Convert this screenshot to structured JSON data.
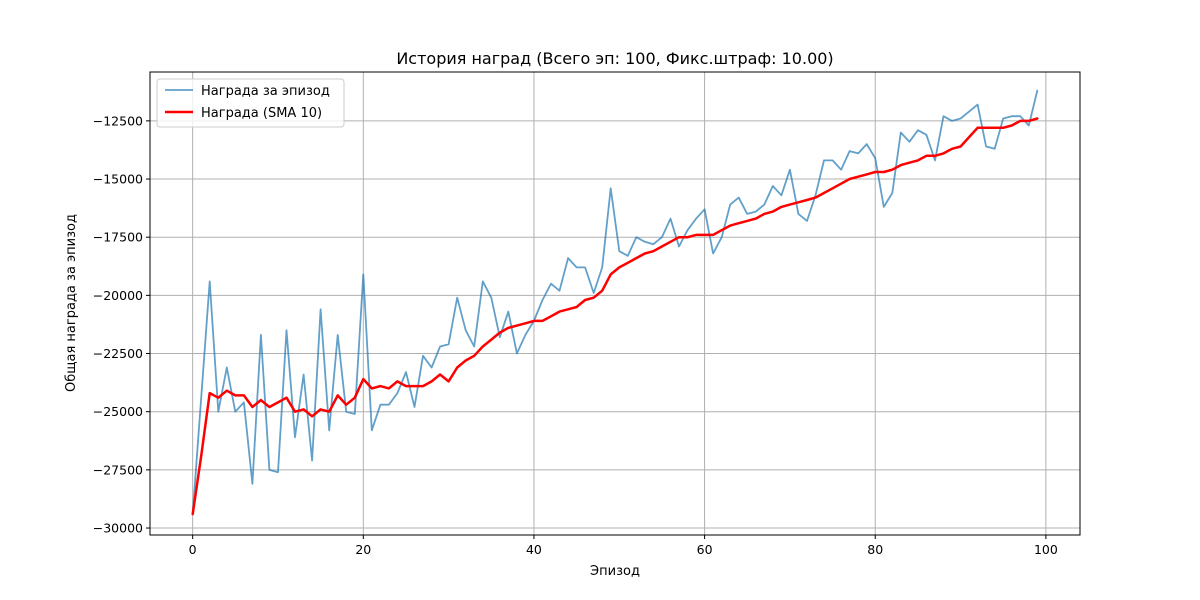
{
  "chart_data": {
    "type": "line",
    "title": "История наград (Всего эп: 100, Фикс.штраф: 10.00)",
    "xlabel": "Эпизод",
    "ylabel": "Общая награда за эпизод",
    "xlim": [
      -5,
      104
    ],
    "ylim": [
      -30300,
      -10400
    ],
    "xticks": [
      0,
      20,
      40,
      60,
      80,
      100
    ],
    "yticks": [
      -30000,
      -27500,
      -25000,
      -22500,
      -20000,
      -17500,
      -15000,
      -12500
    ],
    "grid": true,
    "legend_position": "top-left",
    "x": [
      0,
      1,
      2,
      3,
      4,
      5,
      6,
      7,
      8,
      9,
      10,
      11,
      12,
      13,
      14,
      15,
      16,
      17,
      18,
      19,
      20,
      21,
      22,
      23,
      24,
      25,
      26,
      27,
      28,
      29,
      30,
      31,
      32,
      33,
      34,
      35,
      36,
      37,
      38,
      39,
      40,
      41,
      42,
      43,
      44,
      45,
      46,
      47,
      48,
      49,
      50,
      51,
      52,
      53,
      54,
      55,
      56,
      57,
      58,
      59,
      60,
      61,
      62,
      63,
      64,
      65,
      66,
      67,
      68,
      69,
      70,
      71,
      72,
      73,
      74,
      75,
      76,
      77,
      78,
      79,
      80,
      81,
      82,
      83,
      84,
      85,
      86,
      87,
      88,
      89,
      90,
      91,
      92,
      93,
      94,
      95,
      96,
      97,
      98,
      99
    ],
    "series": [
      {
        "name": "Награда за эпизод",
        "color": "#1f77b4",
        "opacity": 0.7,
        "width": 1.8,
        "values": [
          -29400,
          -24400,
          -19400,
          -25000,
          -23100,
          -25000,
          -24600,
          -28100,
          -21700,
          -27500,
          -27600,
          -21500,
          -26100,
          -23400,
          -27100,
          -20600,
          -25800,
          -21700,
          -25000,
          -25100,
          -19100,
          -25800,
          -24700,
          -24700,
          -24200,
          -23300,
          -24800,
          -22600,
          -23100,
          -22200,
          -22100,
          -20100,
          -21500,
          -22200,
          -19400,
          -20100,
          -21800,
          -20700,
          -22500,
          -21700,
          -21100,
          -20200,
          -19500,
          -19800,
          -18400,
          -18800,
          -18800,
          -19900,
          -18800,
          -15400,
          -18100,
          -18300,
          -17500,
          -17700,
          -17800,
          -17500,
          -16700,
          -17900,
          -17200,
          -16700,
          -16300,
          -18200,
          -17500,
          -16100,
          -15800,
          -16500,
          -16400,
          -16100,
          -15300,
          -15700,
          -14600,
          -16500,
          -16800,
          -15700,
          -14200,
          -14200,
          -14600,
          -13800,
          -13900,
          -13500,
          -14100,
          -16200,
          -15600,
          -13000,
          -13400,
          -12900,
          -13100,
          -14200,
          -12300,
          -12500,
          -12400,
          -12100,
          -11800,
          -13600,
          -13700,
          -12400,
          -12300,
          -12300,
          -12700,
          -11200
        ]
      },
      {
        "name": "Награда (SMA 10)",
        "color": "#ff0000",
        "opacity": 1,
        "width": 2.5,
        "values": [
          -29400,
          -26900,
          -24200,
          -24400,
          -24100,
          -24300,
          -24300,
          -24800,
          -24500,
          -24800,
          -24600,
          -24400,
          -25000,
          -24900,
          -25200,
          -24900,
          -25000,
          -24300,
          -24700,
          -24400,
          -23600,
          -24000,
          -23900,
          -24000,
          -23700,
          -23900,
          -23900,
          -23900,
          -23700,
          -23400,
          -23700,
          -23100,
          -22800,
          -22600,
          -22200,
          -21900,
          -21600,
          -21400,
          -21300,
          -21200,
          -21100,
          -21100,
          -20900,
          -20700,
          -20600,
          -20500,
          -20200,
          -20100,
          -19800,
          -19100,
          -18800,
          -18600,
          -18400,
          -18200,
          -18100,
          -17900,
          -17700,
          -17500,
          -17500,
          -17400,
          -17400,
          -17400,
          -17200,
          -17000,
          -16900,
          -16800,
          -16700,
          -16500,
          -16400,
          -16200,
          -16100,
          -16000,
          -15900,
          -15800,
          -15600,
          -15400,
          -15200,
          -15000,
          -14900,
          -14800,
          -14700,
          -14700,
          -14600,
          -14400,
          -14300,
          -14200,
          -14000,
          -14000,
          -13900,
          -13700,
          -13600,
          -13200,
          -12800,
          -12800,
          -12800,
          -12800,
          -12700,
          -12500,
          -12500,
          -12400
        ]
      }
    ]
  }
}
